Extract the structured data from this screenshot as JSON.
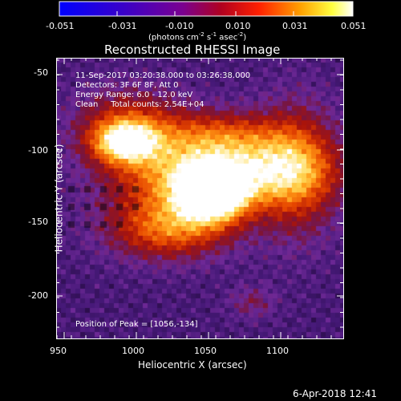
{
  "colorbar": {
    "tick_labels": [
      "-0.051",
      "-0.031",
      "-0.010",
      "0.010",
      "0.031",
      "0.051"
    ],
    "units_label": "(photons cm",
    "units_exp1": "-2",
    "units_mid": " s",
    "units_exp2": "-1",
    "units_end": " asec",
    "units_exp3": "-2",
    "units_close": ")"
  },
  "image": {
    "title": "Reconstructed RHESSI Image",
    "info_lines": [
      "11-Sep-2017 03:20:38.000 to 03:26:38.000",
      "Detectors: 3F 6F 8F, Att 0",
      "Energy Range: 6.0 - 12.0 keV",
      "Clean     Total counts: 2.54E+04"
    ],
    "peak_label": "Position of Peak = [1056,-134]",
    "xlabel": "Heliocentric X (arcsec)",
    "ylabel": "Heliocentric Y (arcsec)",
    "x_ticks": [
      "950",
      "1000",
      "1050",
      "1100"
    ],
    "y_ticks": [
      "-50",
      "-100",
      "-150",
      "-200"
    ],
    "timestamp": "6-Apr-2018 12:41",
    "colormap": "blue-purple-red-yellow-white"
  },
  "chart_data": {
    "type": "heatmap",
    "title": "Reconstructed RHESSI Image",
    "xlabel": "Heliocentric X (arcsec)",
    "ylabel": "Heliocentric Y (arcsec)",
    "xlim": [
      945,
      1140
    ],
    "ylim": [
      -228,
      -38
    ],
    "colorbar_range": [
      -0.051,
      0.051
    ],
    "peak": {
      "x": 1056,
      "y": -134
    }
  }
}
